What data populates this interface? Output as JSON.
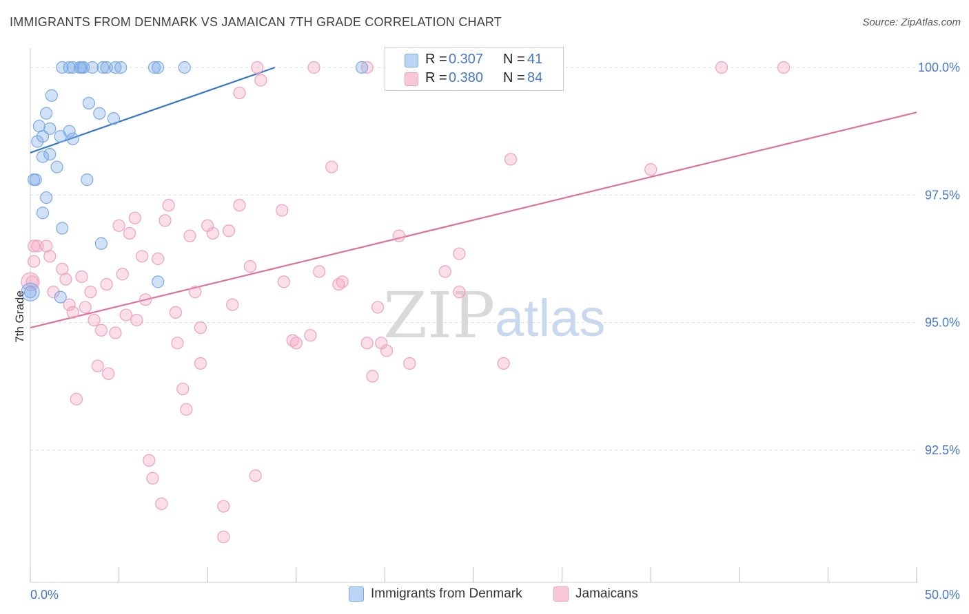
{
  "header": {
    "title": "IMMIGRANTS FROM DENMARK VS JAMAICAN 7TH GRADE CORRELATION CHART",
    "source": "Source: ZipAtlas.com"
  },
  "legend": {
    "series1": {
      "r_label": "R =",
      "r_value": "0.307",
      "n_label": "N =",
      "n_value": "41"
    },
    "series2": {
      "r_label": "R =",
      "r_value": "0.380",
      "n_label": "N =",
      "n_value": "84"
    }
  },
  "bottom_legend": {
    "series1": "Immigrants from Denmark",
    "series2": "Jamaicans"
  },
  "watermark": {
    "zip": "ZIP",
    "atlas": "atlas"
  },
  "chart_data": {
    "type": "scatter",
    "title": "IMMIGRANTS FROM DENMARK VS JAMAICAN 7TH GRADE CORRELATION CHART",
    "xlabel": "",
    "ylabel": "7th Grade",
    "xlim": [
      0,
      50
    ],
    "ylim": [
      90.0,
      100.25
    ],
    "x_tick_labels": [
      "0.0%",
      "50.0%"
    ],
    "y_ticks": [
      92.5,
      95.0,
      97.5,
      100.0
    ],
    "y_tick_labels": [
      "92.5%",
      "95.0%",
      "97.5%",
      "100.0%"
    ],
    "grid": true,
    "colors": {
      "series1": "#7aaae6",
      "series1_line": "#3377cc",
      "series2": "#f0a0bc",
      "series2_line": "#e0709a"
    },
    "series": [
      {
        "name": "Immigrants from Denmark",
        "trend": {
          "x": [
            0.0,
            13.8
          ],
          "y": [
            98.33,
            100.0
          ]
        },
        "points": [
          [
            1.8,
            100.0
          ],
          [
            2.2,
            100.0
          ],
          [
            2.4,
            100.0
          ],
          [
            2.8,
            100.0
          ],
          [
            2.9,
            100.0
          ],
          [
            3.5,
            100.0
          ],
          [
            4.1,
            100.0
          ],
          [
            4.3,
            100.0
          ],
          [
            5.1,
            100.0
          ],
          [
            7.0,
            100.0
          ],
          [
            7.2,
            100.0
          ],
          [
            8.7,
            100.0
          ],
          [
            18.7,
            100.0
          ],
          [
            3.0,
            100.0
          ],
          [
            4.8,
            100.0
          ],
          [
            1.2,
            99.45
          ],
          [
            3.3,
            99.3
          ],
          [
            0.9,
            99.1
          ],
          [
            3.9,
            99.1
          ],
          [
            4.7,
            99.0
          ],
          [
            0.5,
            98.85
          ],
          [
            1.1,
            98.8
          ],
          [
            2.2,
            98.75
          ],
          [
            0.7,
            98.65
          ],
          [
            1.7,
            98.65
          ],
          [
            0.4,
            98.55
          ],
          [
            2.4,
            98.6
          ],
          [
            1.1,
            98.3
          ],
          [
            0.7,
            98.25
          ],
          [
            1.5,
            98.05
          ],
          [
            0.2,
            97.8
          ],
          [
            0.3,
            97.8
          ],
          [
            3.2,
            97.8
          ],
          [
            0.9,
            97.45
          ],
          [
            0.7,
            97.15
          ],
          [
            1.8,
            96.85
          ],
          [
            4.0,
            96.55
          ],
          [
            7.2,
            95.8
          ],
          [
            1.7,
            95.5
          ],
          [
            0.0,
            95.6
          ],
          [
            0.0,
            95.6
          ]
        ],
        "sizes": [
          1,
          1,
          1,
          1,
          1,
          1,
          1,
          1,
          1,
          1,
          1,
          1,
          1,
          1,
          1,
          1,
          1,
          1,
          1,
          1,
          1,
          1,
          1,
          1,
          1,
          1,
          1,
          1,
          1,
          1,
          1,
          1,
          1,
          1,
          1,
          1,
          1,
          1,
          1,
          1,
          2
        ]
      },
      {
        "name": "Jamaicans",
        "trend": {
          "x": [
            0.0,
            50.0
          ],
          "y": [
            94.9,
            99.12
          ]
        },
        "points": [
          [
            12.8,
            100.0
          ],
          [
            16.0,
            100.0
          ],
          [
            19.0,
            100.0
          ],
          [
            27.0,
            100.0
          ],
          [
            39.0,
            100.0
          ],
          [
            42.5,
            100.0
          ],
          [
            13.0,
            99.75
          ],
          [
            11.8,
            99.5
          ],
          [
            27.1,
            98.2
          ],
          [
            17.0,
            98.05
          ],
          [
            35.0,
            98.0
          ],
          [
            7.8,
            97.3
          ],
          [
            11.8,
            97.3
          ],
          [
            14.2,
            97.2
          ],
          [
            5.9,
            97.05
          ],
          [
            7.6,
            97.0
          ],
          [
            5.0,
            96.9
          ],
          [
            10.0,
            96.9
          ],
          [
            10.3,
            96.75
          ],
          [
            5.6,
            96.75
          ],
          [
            9.0,
            96.7
          ],
          [
            11.2,
            96.8
          ],
          [
            20.8,
            96.7
          ],
          [
            0.4,
            96.5
          ],
          [
            0.9,
            96.5
          ],
          [
            1.1,
            96.3
          ],
          [
            6.3,
            96.3
          ],
          [
            7.2,
            96.25
          ],
          [
            24.2,
            96.35
          ],
          [
            0.2,
            96.2
          ],
          [
            12.4,
            96.1
          ],
          [
            1.8,
            96.05
          ],
          [
            16.3,
            96.0
          ],
          [
            23.4,
            96.0
          ],
          [
            5.2,
            95.95
          ],
          [
            2.9,
            95.9
          ],
          [
            2.0,
            95.85
          ],
          [
            0.1,
            95.8
          ],
          [
            14.3,
            95.8
          ],
          [
            17.6,
            95.8
          ],
          [
            17.4,
            95.75
          ],
          [
            4.3,
            95.75
          ],
          [
            1.3,
            95.6
          ],
          [
            3.4,
            95.6
          ],
          [
            9.3,
            95.6
          ],
          [
            24.2,
            95.6
          ],
          [
            6.5,
            95.45
          ],
          [
            2.2,
            95.35
          ],
          [
            11.4,
            95.35
          ],
          [
            3.1,
            95.3
          ],
          [
            19.6,
            95.3
          ],
          [
            8.2,
            95.2
          ],
          [
            2.4,
            95.2
          ],
          [
            5.4,
            95.15
          ],
          [
            3.6,
            95.05
          ],
          [
            6.0,
            95.05
          ],
          [
            9.6,
            94.9
          ],
          [
            4.0,
            94.85
          ],
          [
            4.8,
            94.8
          ],
          [
            15.8,
            94.75
          ],
          [
            14.8,
            94.65
          ],
          [
            15.0,
            94.6
          ],
          [
            19.0,
            94.6
          ],
          [
            8.3,
            94.6
          ],
          [
            19.8,
            94.6
          ],
          [
            20.1,
            94.45
          ],
          [
            9.6,
            94.2
          ],
          [
            21.4,
            94.2
          ],
          [
            26.7,
            94.2
          ],
          [
            3.8,
            94.15
          ],
          [
            4.4,
            94.0
          ],
          [
            19.3,
            93.95
          ],
          [
            8.6,
            93.7
          ],
          [
            2.6,
            93.5
          ],
          [
            8.8,
            93.3
          ],
          [
            6.7,
            92.3
          ],
          [
            6.9,
            91.95
          ],
          [
            12.7,
            92.0
          ],
          [
            7.4,
            91.45
          ],
          [
            10.9,
            91.4
          ],
          [
            10.9,
            90.8
          ],
          [
            27.0,
            100.0
          ],
          [
            0.0,
            95.8
          ],
          [
            0.2,
            96.5
          ]
        ],
        "sizes": [
          1,
          1,
          1,
          1,
          1,
          1,
          1,
          1,
          1,
          1,
          1,
          1,
          1,
          1,
          1,
          1,
          1,
          1,
          1,
          1,
          1,
          1,
          1,
          1,
          1,
          1,
          1,
          1,
          1,
          1,
          1,
          1,
          1,
          1,
          1,
          1,
          1,
          1,
          1,
          1,
          1,
          1,
          1,
          1,
          1,
          1,
          1,
          1,
          1,
          1,
          1,
          1,
          1,
          1,
          1,
          1,
          1,
          1,
          1,
          1,
          1,
          1,
          1,
          1,
          1,
          1,
          1,
          1,
          1,
          1,
          1,
          1,
          1,
          1,
          1,
          1,
          1,
          1,
          1,
          1,
          1,
          3,
          2
        ]
      }
    ]
  }
}
